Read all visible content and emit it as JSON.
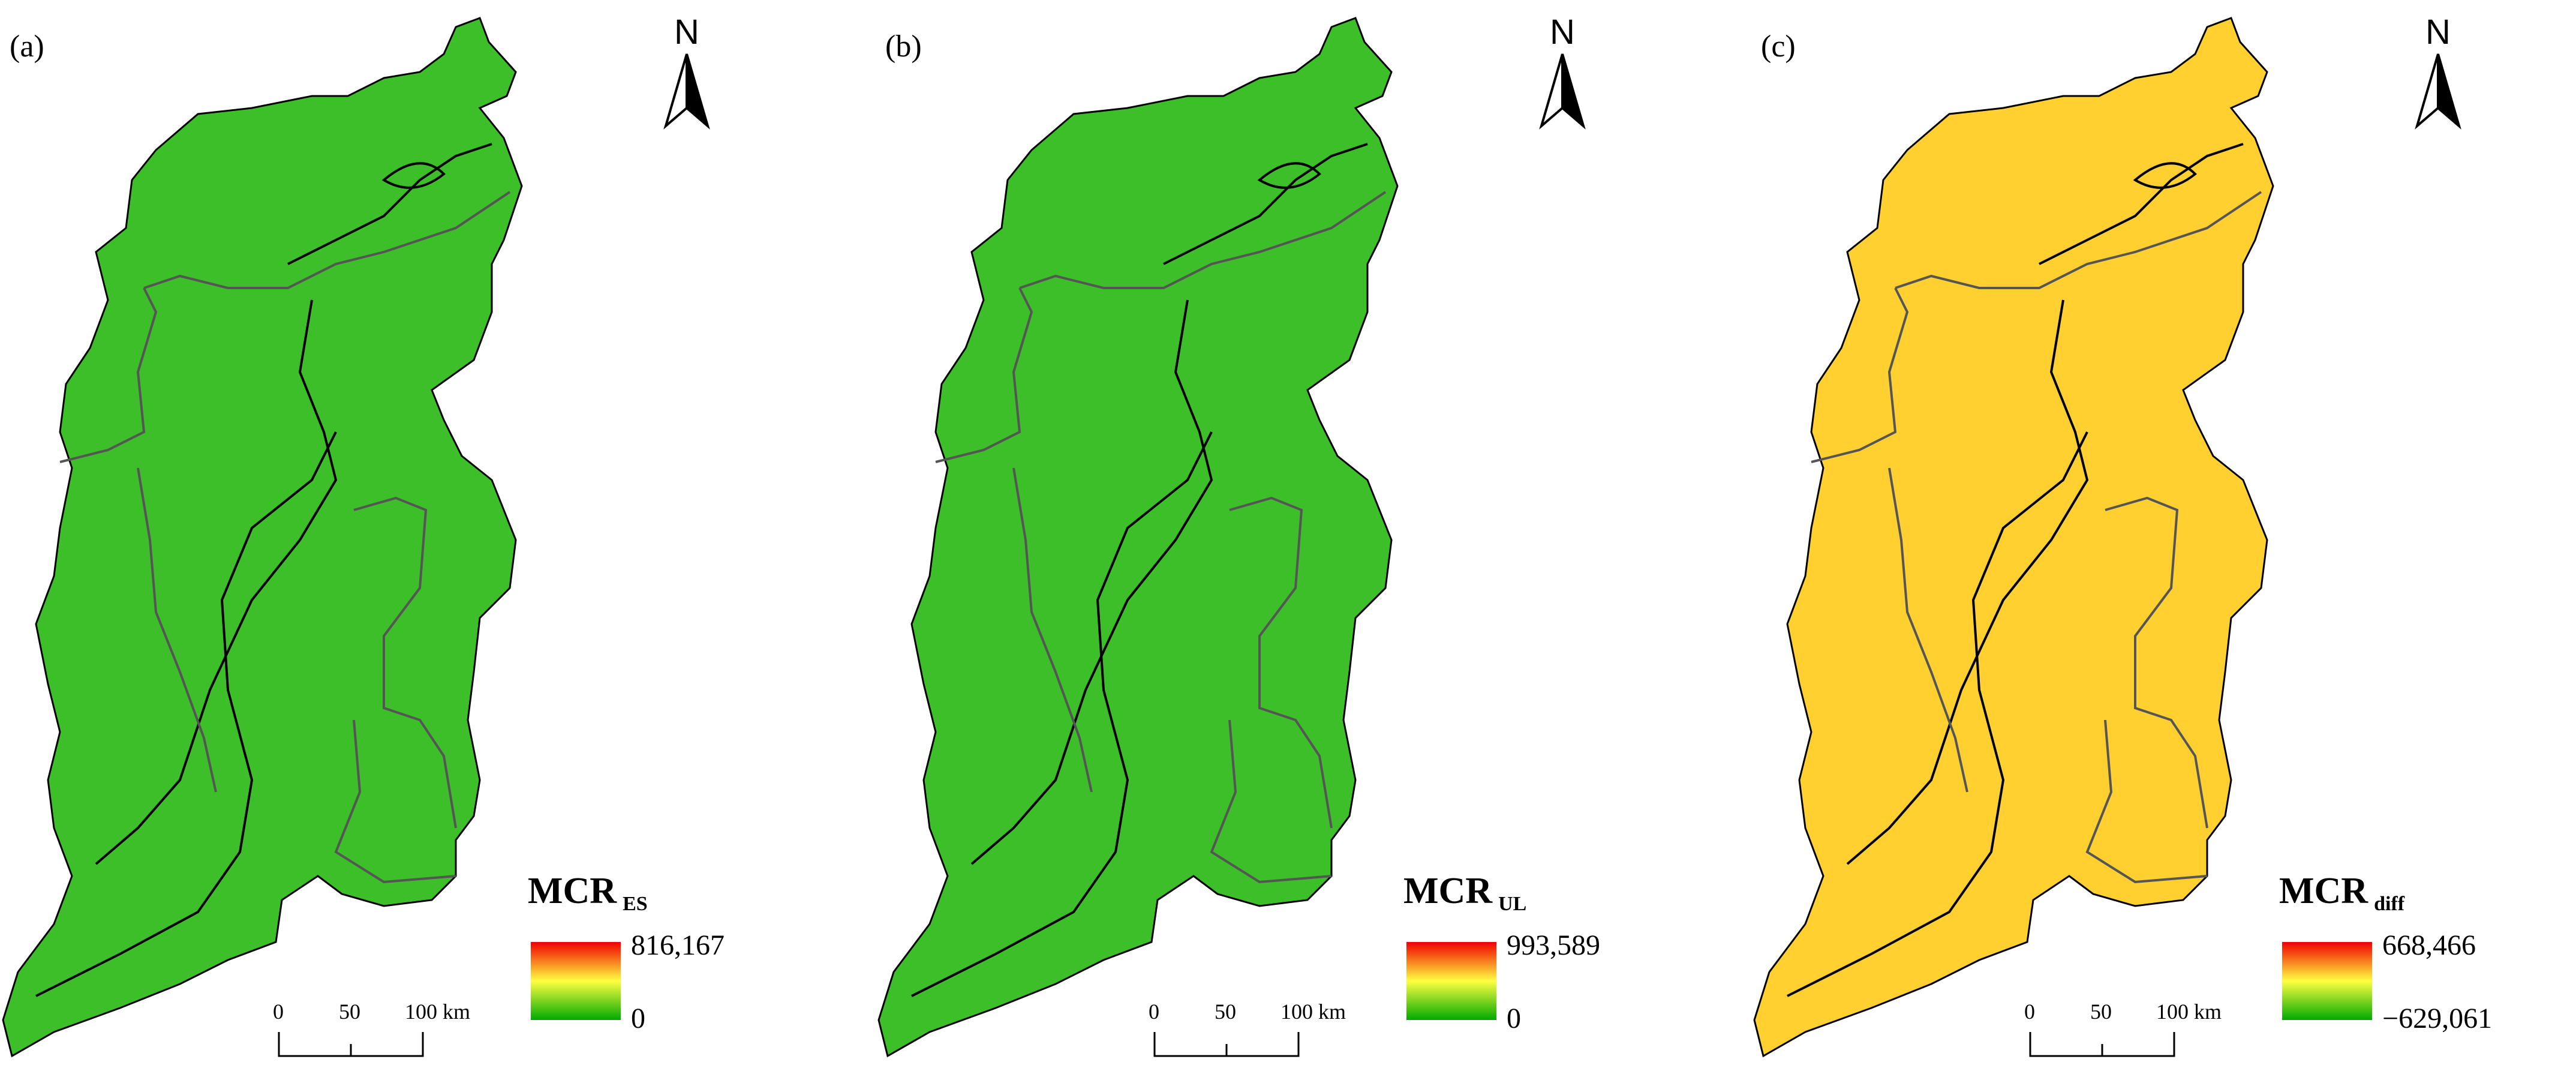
{
  "panels": [
    {
      "id": "a",
      "label": "(a)",
      "north": "N",
      "legend": {
        "title": "MCR",
        "subscript": "ES",
        "max_label": "816,167",
        "min_label": "0"
      },
      "scalebar": {
        "ticks": [
          "0",
          "50",
          "100 km"
        ]
      },
      "colors": [
        "#f00000",
        "#ffff40",
        "#00aa00"
      ]
    },
    {
      "id": "b",
      "label": "(b)",
      "north": "N",
      "legend": {
        "title": "MCR",
        "subscript": "UL",
        "max_label": "993,589",
        "min_label": "0"
      },
      "scalebar": {
        "ticks": [
          "0",
          "50",
          "100 km"
        ]
      },
      "colors": [
        "#f00000",
        "#ffff40",
        "#00aa00"
      ]
    },
    {
      "id": "c",
      "label": "(c)",
      "north": "N",
      "legend": {
        "title": "MCR",
        "subscript": "diff",
        "max_label": "668,466",
        "min_label": "−629,061"
      },
      "scalebar": {
        "ticks": [
          "0",
          "50",
          "100 km"
        ]
      },
      "colors": [
        "#f00000",
        "#ffff40",
        "#00aa00"
      ]
    }
  ]
}
